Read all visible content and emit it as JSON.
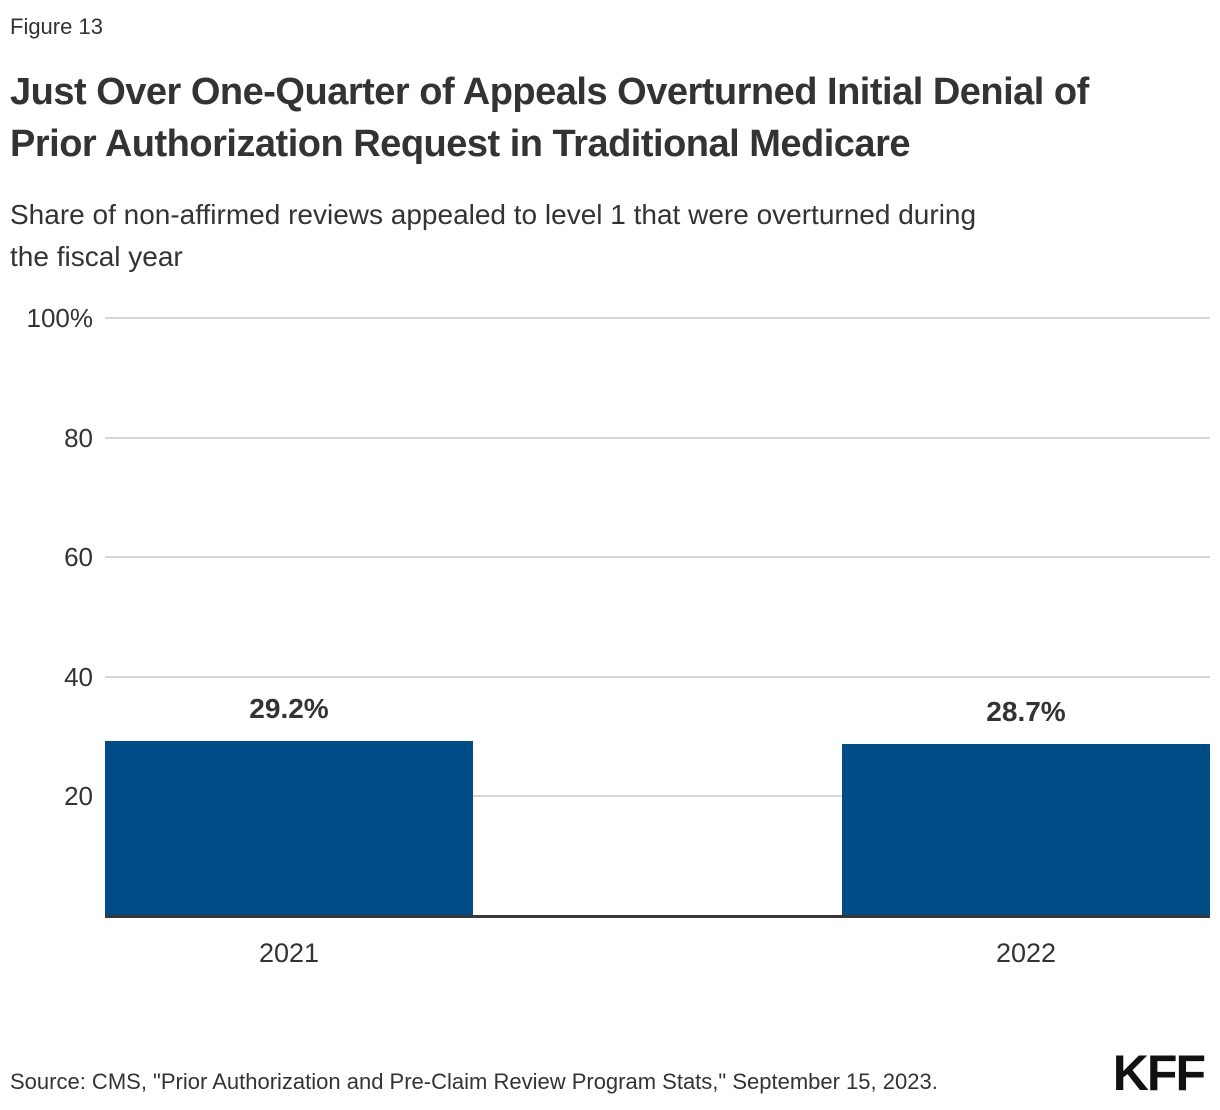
{
  "figure_label": "Figure 13",
  "title": "Just Over One-Quarter of Appeals Overturned Initial Denial of\nPrior Authorization Request in Traditional Medicare",
  "subtitle": "Share of non-affirmed reviews appealed to level 1 that were overturned during\nthe fiscal year",
  "source_note": "Source: CMS, \"Prior Authorization and Pre-Claim Review Program Stats,\" September 15, 2023.",
  "logo_text": "KFF",
  "colors": {
    "bar": "#004C87",
    "text": "#333333",
    "gridline": "#D6D6D6",
    "axis_line": "#383838",
    "logo": "#111111",
    "background": "#FFFFFF"
  },
  "chart_data": {
    "type": "bar",
    "categories": [
      "2021",
      "2022"
    ],
    "values": [
      29.2,
      28.7
    ],
    "value_labels": [
      "29.2%",
      "28.7%"
    ],
    "title": "Just Over One-Quarter of Appeals Overturned Initial Denial of Prior Authorization Request in Traditional Medicare",
    "subtitle": "Share of non-affirmed reviews appealed to level 1 that were overturned during the fiscal year",
    "xlabel": "",
    "ylabel": "",
    "ylim": [
      0,
      100
    ],
    "yticks": [
      20,
      40,
      60,
      80,
      100
    ],
    "ytick_labels": [
      "20",
      "40",
      "60",
      "80",
      "100%"
    ],
    "grid": true,
    "legend": false,
    "bar_orientation": "vertical"
  }
}
